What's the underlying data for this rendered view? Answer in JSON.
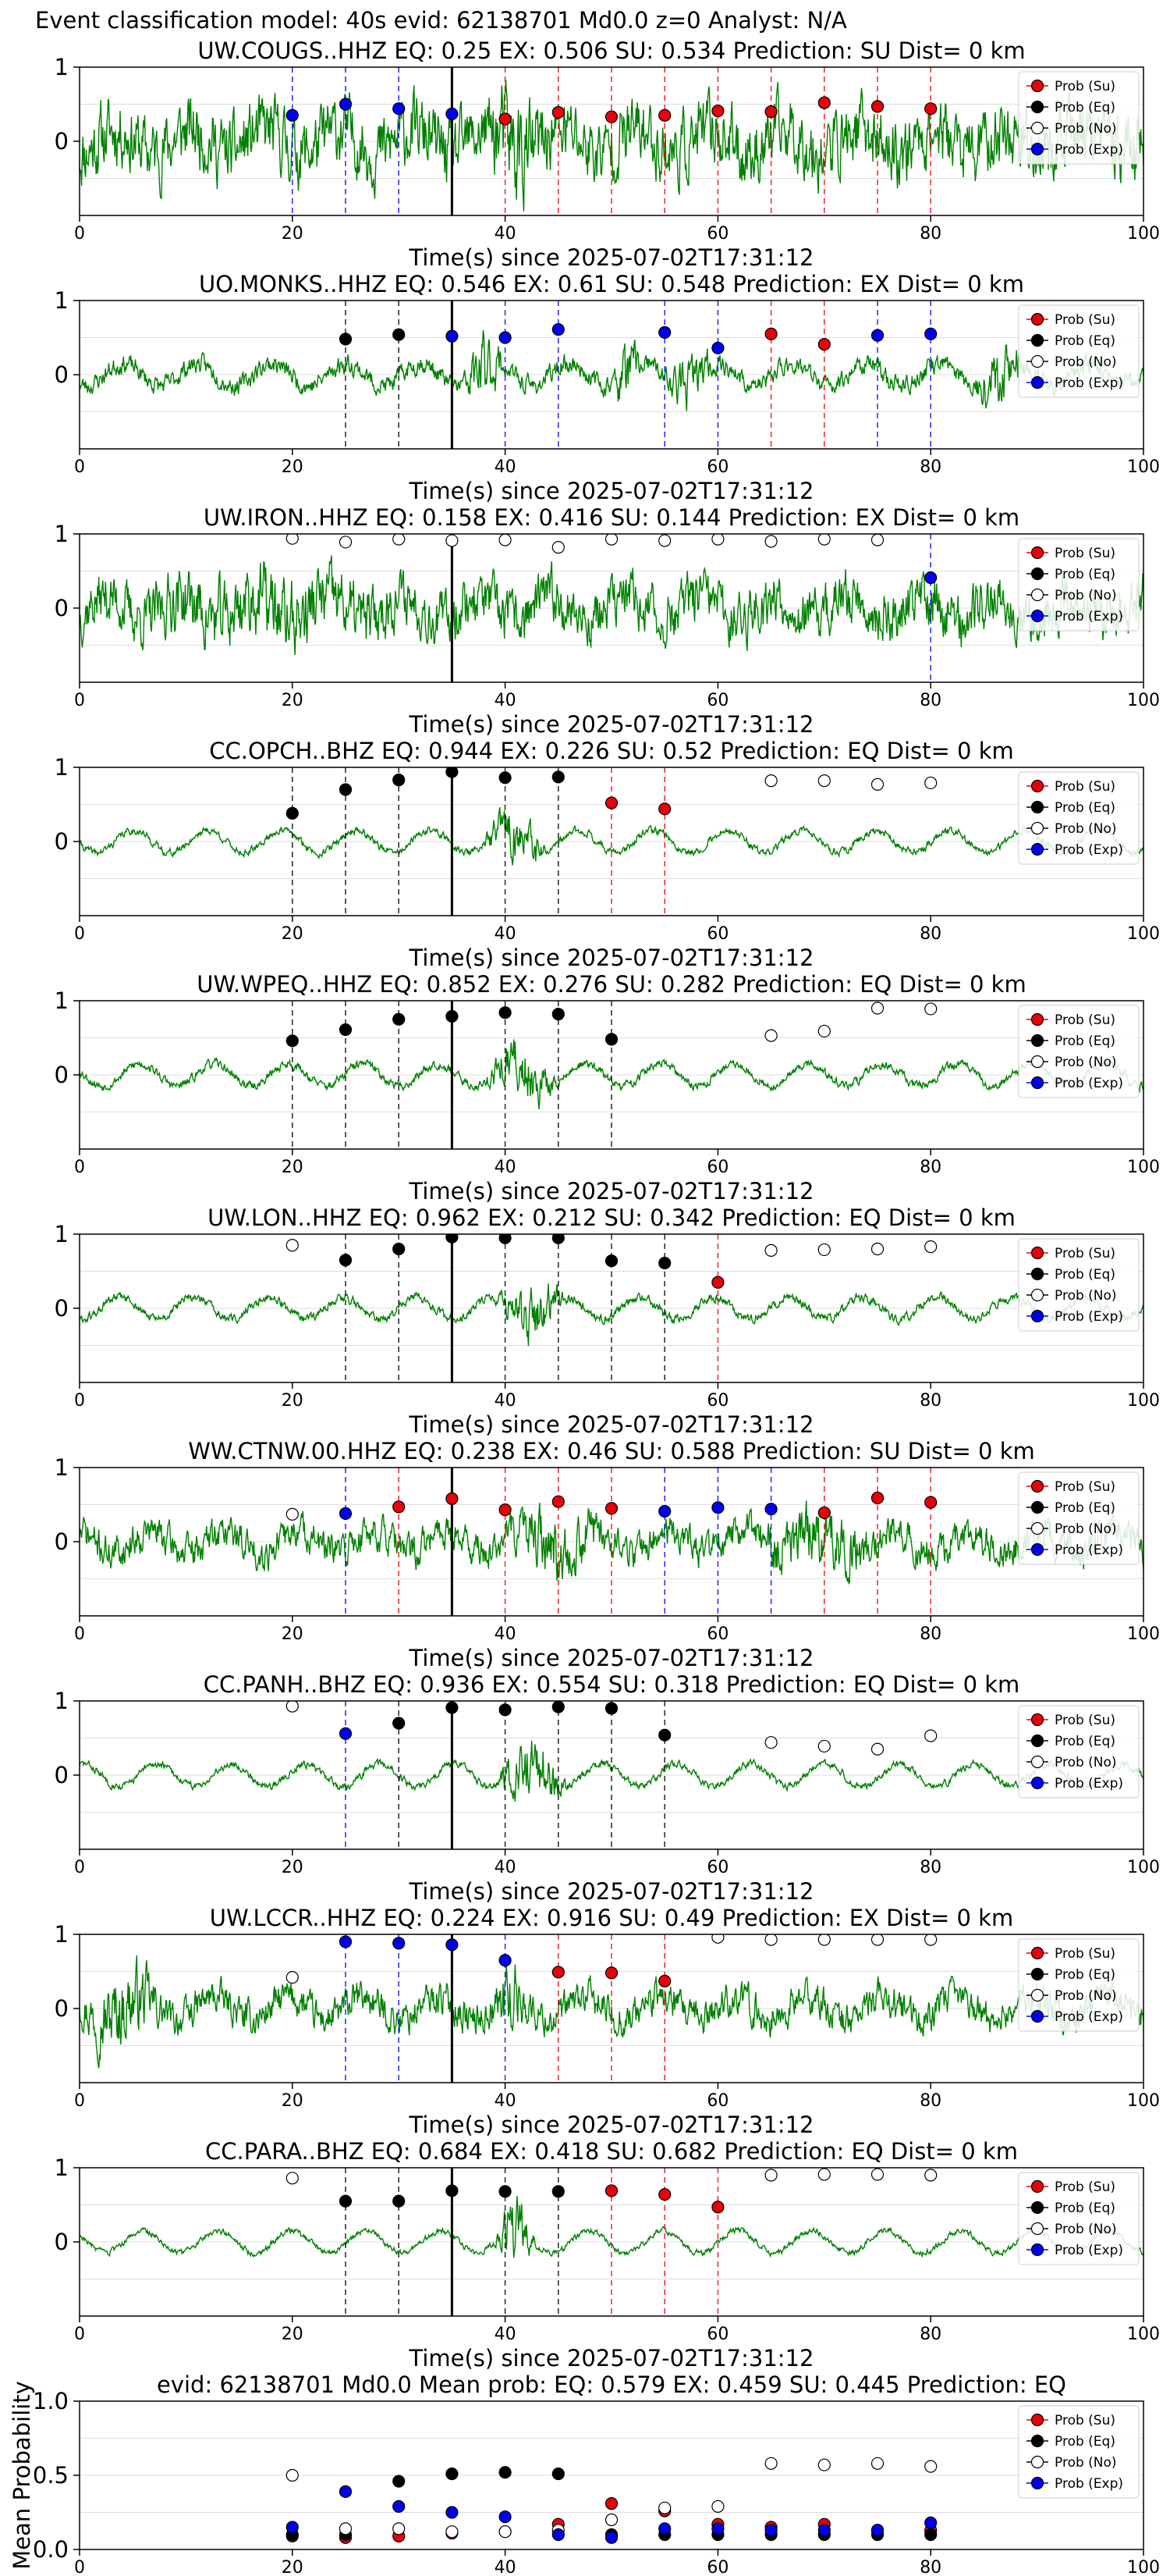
{
  "header": "Event classification model: 40s evid: 62138701 Md0.0 z=0 Analyst: N/A",
  "colors": {
    "trace": "#008000",
    "su": "#e8000b",
    "eq": "#000000",
    "no": "#ffffff",
    "exp": "#0000ee",
    "grid": "#dddddd",
    "pick": "#000000"
  },
  "legend": [
    "Prob (Su)",
    "Prob (Eq)",
    "Prob (No)",
    "Prob (Exp)"
  ],
  "chart_data": [
    {
      "type": "line",
      "title": "UW.COUGS..HHZ   EQ: 0.25   EX: 0.506   SU: 0.534   Prediction: SU    Dist= 0 km",
      "xlabel": "Time(s) since 2025-07-02T17:31:12",
      "xlim": [
        0,
        100
      ],
      "ylim": [
        -1,
        1
      ],
      "xticks": [
        "0",
        "20",
        "40",
        "60",
        "80",
        "100"
      ],
      "yticks": [
        "1",
        "0"
      ],
      "amp": 0.9,
      "seed": 11,
      "env": [
        [
          38,
          44,
          1.6
        ]
      ],
      "pick": 35,
      "markers": [
        [
          20,
          0.35,
          "exp"
        ],
        [
          25,
          0.5,
          "exp"
        ],
        [
          30,
          0.44,
          "exp"
        ],
        [
          35,
          0.37,
          "exp"
        ],
        [
          40,
          0.3,
          "su"
        ],
        [
          45,
          0.39,
          "su"
        ],
        [
          50,
          0.33,
          "su"
        ],
        [
          55,
          0.35,
          "su"
        ],
        [
          60,
          0.41,
          "su"
        ],
        [
          65,
          0.4,
          "su"
        ],
        [
          70,
          0.52,
          "su"
        ],
        [
          75,
          0.47,
          "su"
        ],
        [
          80,
          0.44,
          "su"
        ]
      ]
    },
    {
      "type": "line",
      "title": "UO.MONKS..HHZ   EQ: 0.546  EX: 0.61   SU: 0.548   Prediction: EX    Dist= 0 km",
      "xlabel": "Time(s) since 2025-07-02T17:31:12",
      "xlim": [
        0,
        100
      ],
      "ylim": [
        -1,
        1
      ],
      "xticks": [
        "0",
        "20",
        "40",
        "60",
        "80",
        "100"
      ],
      "yticks": [
        "1",
        "0"
      ],
      "amp": 0.25,
      "seed": 23,
      "env": [
        [
          36,
          40,
          3.5
        ],
        [
          50,
          53,
          3
        ],
        [
          55,
          60,
          2.5
        ],
        [
          84,
          89,
          3
        ]
      ],
      "pick": 35,
      "markers": [
        [
          25,
          0.48,
          "eq"
        ],
        [
          30,
          0.54,
          "eq"
        ],
        [
          35,
          0.52,
          "exp"
        ],
        [
          40,
          0.5,
          "exp"
        ],
        [
          45,
          0.61,
          "exp"
        ],
        [
          55,
          0.57,
          "exp"
        ],
        [
          60,
          0.36,
          "exp"
        ],
        [
          65,
          0.55,
          "su"
        ],
        [
          70,
          0.41,
          "su"
        ],
        [
          75,
          0.53,
          "exp"
        ],
        [
          80,
          0.55,
          "exp"
        ]
      ]
    },
    {
      "type": "line",
      "title": "UW.IRON..HHZ   EQ: 0.158  EX: 0.416  SU: 0.144   Prediction: EX    Dist= 0 km",
      "xlabel": "Time(s) since 2025-07-02T17:31:12",
      "xlim": [
        0,
        100
      ],
      "ylim": [
        -1,
        1
      ],
      "xticks": [
        "0",
        "20",
        "40",
        "60",
        "80",
        "100"
      ],
      "yticks": [
        "1",
        "0"
      ],
      "amp": 0.7,
      "seed": 37,
      "env": [
        [
          5,
          30,
          1.4
        ]
      ],
      "pick": 35,
      "markers": [
        [
          20,
          0.94,
          "no"
        ],
        [
          25,
          0.89,
          "no"
        ],
        [
          30,
          0.93,
          "no"
        ],
        [
          35,
          0.91,
          "no"
        ],
        [
          40,
          0.92,
          "no"
        ],
        [
          45,
          0.82,
          "no"
        ],
        [
          50,
          0.93,
          "no"
        ],
        [
          55,
          0.91,
          "no"
        ],
        [
          60,
          0.93,
          "no"
        ],
        [
          65,
          0.9,
          "no"
        ],
        [
          70,
          0.93,
          "no"
        ],
        [
          75,
          0.92,
          "no"
        ],
        [
          80,
          0.41,
          "exp"
        ]
      ]
    },
    {
      "type": "line",
      "title": "CC.OPCH..BHZ   EQ: 0.944  EX: 0.226  SU: 0.52   Prediction: EQ    Dist= 0 km",
      "xlabel": "Time(s) since 2025-07-02T17:31:12",
      "xlim": [
        0,
        100
      ],
      "ylim": [
        -1,
        1
      ],
      "xticks": [
        "0",
        "20",
        "40",
        "60",
        "80",
        "100"
      ],
      "yticks": [
        "1",
        "0"
      ],
      "amp": 0.1,
      "seed": 41,
      "env": [
        [
          38,
          44,
          7
        ]
      ],
      "pick": 35,
      "markers": [
        [
          20,
          0.38,
          "eq"
        ],
        [
          25,
          0.7,
          "eq"
        ],
        [
          30,
          0.83,
          "eq"
        ],
        [
          35,
          0.94,
          "eq"
        ],
        [
          40,
          0.86,
          "eq"
        ],
        [
          45,
          0.87,
          "eq"
        ],
        [
          50,
          0.52,
          "su"
        ],
        [
          55,
          0.44,
          "su"
        ],
        [
          65,
          0.82,
          "no"
        ],
        [
          70,
          0.82,
          "no"
        ],
        [
          75,
          0.77,
          "no"
        ],
        [
          80,
          0.79,
          "no"
        ]
      ]
    },
    {
      "type": "line",
      "title": "UW.WPEQ..HHZ   EQ: 0.852  EX: 0.276  SU: 0.282   Prediction: EQ    Dist= 0 km",
      "xlabel": "Time(s) since 2025-07-02T17:31:12",
      "xlim": [
        0,
        100
      ],
      "ylim": [
        -1,
        1
      ],
      "xticks": [
        "0",
        "20",
        "40",
        "60",
        "80",
        "100"
      ],
      "yticks": [
        "1",
        "0"
      ],
      "amp": 0.12,
      "seed": 53,
      "env": [
        [
          38,
          45,
          6
        ]
      ],
      "pick": 35,
      "markers": [
        [
          20,
          0.46,
          "eq"
        ],
        [
          25,
          0.61,
          "eq"
        ],
        [
          30,
          0.75,
          "eq"
        ],
        [
          35,
          0.79,
          "eq"
        ],
        [
          40,
          0.84,
          "eq"
        ],
        [
          45,
          0.82,
          "eq"
        ],
        [
          50,
          0.48,
          "eq"
        ],
        [
          65,
          0.53,
          "no"
        ],
        [
          70,
          0.59,
          "no"
        ],
        [
          75,
          0.9,
          "no"
        ],
        [
          80,
          0.89,
          "no"
        ]
      ]
    },
    {
      "type": "line",
      "title": "UW.LON..HHZ   EQ: 0.962  EX: 0.212  SU: 0.342   Prediction: EQ    Dist= 0 km",
      "xlabel": "Time(s) since 2025-07-02T17:31:12",
      "xlim": [
        0,
        100
      ],
      "ylim": [
        -1,
        1
      ],
      "xticks": [
        "0",
        "20",
        "40",
        "60",
        "80",
        "100"
      ],
      "yticks": [
        "1",
        "0"
      ],
      "amp": 0.12,
      "seed": 61,
      "env": [
        [
          39,
          46,
          6
        ]
      ],
      "pick": 35,
      "markers": [
        [
          20,
          0.85,
          "no"
        ],
        [
          25,
          0.65,
          "eq"
        ],
        [
          30,
          0.8,
          "eq"
        ],
        [
          35,
          0.96,
          "eq"
        ],
        [
          40,
          0.95,
          "eq"
        ],
        [
          45,
          0.95,
          "eq"
        ],
        [
          50,
          0.64,
          "eq"
        ],
        [
          55,
          0.61,
          "eq"
        ],
        [
          60,
          0.35,
          "su"
        ],
        [
          65,
          0.78,
          "no"
        ],
        [
          70,
          0.79,
          "no"
        ],
        [
          75,
          0.8,
          "no"
        ],
        [
          80,
          0.83,
          "no"
        ]
      ]
    },
    {
      "type": "line",
      "title": "WW.CTNW.00.HHZ   EQ: 0.238  EX: 0.46   SU: 0.588   Prediction: SU    Dist= 0 km",
      "xlabel": "Time(s) since 2025-07-02T17:31:12",
      "xlim": [
        0,
        100
      ],
      "ylim": [
        -1,
        1
      ],
      "xticks": [
        "0",
        "20",
        "40",
        "60",
        "80",
        "100"
      ],
      "yticks": [
        "1",
        "0"
      ],
      "amp": 0.45,
      "seed": 71,
      "env": [
        [
          40,
          50,
          1.8
        ],
        [
          63,
          75,
          1.8
        ]
      ],
      "pick": 35,
      "markers": [
        [
          20,
          0.37,
          "no"
        ],
        [
          25,
          0.38,
          "exp"
        ],
        [
          30,
          0.47,
          "su"
        ],
        [
          35,
          0.58,
          "su"
        ],
        [
          40,
          0.43,
          "su"
        ],
        [
          45,
          0.54,
          "su"
        ],
        [
          50,
          0.45,
          "su"
        ],
        [
          55,
          0.41,
          "exp"
        ],
        [
          60,
          0.46,
          "exp"
        ],
        [
          65,
          0.44,
          "exp"
        ],
        [
          70,
          0.39,
          "su"
        ],
        [
          75,
          0.59,
          "su"
        ],
        [
          80,
          0.53,
          "su"
        ]
      ]
    },
    {
      "type": "line",
      "title": "CC.PANH..BHZ   EQ: 0.936  EX: 0.554  SU: 0.318   Prediction: EQ    Dist= 0 km",
      "xlabel": "Time(s) since 2025-07-02T17:31:12",
      "xlim": [
        0,
        100
      ],
      "ylim": [
        -1,
        1
      ],
      "xticks": [
        "0",
        "20",
        "40",
        "60",
        "80",
        "100"
      ],
      "yticks": [
        "1",
        "0"
      ],
      "amp": 0.1,
      "seed": 83,
      "env": [
        [
          39,
          46,
          8
        ]
      ],
      "pick": 35,
      "markers": [
        [
          20,
          0.93,
          "no"
        ],
        [
          25,
          0.56,
          "exp"
        ],
        [
          30,
          0.7,
          "eq"
        ],
        [
          35,
          0.91,
          "eq"
        ],
        [
          40,
          0.88,
          "eq"
        ],
        [
          45,
          0.92,
          "eq"
        ],
        [
          50,
          0.9,
          "eq"
        ],
        [
          55,
          0.54,
          "eq"
        ],
        [
          65,
          0.44,
          "no"
        ],
        [
          70,
          0.39,
          "no"
        ],
        [
          75,
          0.35,
          "no"
        ],
        [
          80,
          0.53,
          "no"
        ]
      ]
    },
    {
      "type": "line",
      "title": "UW.LCCR..HHZ   EQ: 0.224  EX: 0.916  SU: 0.49   Prediction: EX    Dist= 0 km",
      "xlabel": "Time(s) since 2025-07-02T17:31:12",
      "xlim": [
        0,
        100
      ],
      "ylim": [
        -1,
        1
      ],
      "xticks": [
        "0",
        "20",
        "40",
        "60",
        "80",
        "100"
      ],
      "yticks": [
        "1",
        "0"
      ],
      "amp": 0.45,
      "seed": 97,
      "env": [
        [
          0,
          8,
          2.2
        ],
        [
          39,
          42,
          2.2
        ]
      ],
      "pick": 35,
      "markers": [
        [
          20,
          0.42,
          "no"
        ],
        [
          25,
          0.9,
          "exp"
        ],
        [
          30,
          0.88,
          "exp"
        ],
        [
          35,
          0.86,
          "exp"
        ],
        [
          40,
          0.65,
          "exp"
        ],
        [
          45,
          0.49,
          "su"
        ],
        [
          50,
          0.48,
          "su"
        ],
        [
          55,
          0.37,
          "su"
        ],
        [
          60,
          0.96,
          "no"
        ],
        [
          65,
          0.93,
          "no"
        ],
        [
          70,
          0.93,
          "no"
        ],
        [
          75,
          0.93,
          "no"
        ],
        [
          80,
          0.93,
          "no"
        ]
      ]
    },
    {
      "type": "line",
      "title": "CC.PARA..BHZ   EQ: 0.684  EX: 0.418  SU: 0.682   Prediction: EQ    Dist= 0 km",
      "xlabel": "Time(s) since 2025-07-02T17:31:12",
      "xlim": [
        0,
        100
      ],
      "ylim": [
        -1,
        1
      ],
      "xticks": [
        "0",
        "20",
        "40",
        "60",
        "80",
        "100"
      ],
      "yticks": [
        "1",
        "0"
      ],
      "amp": 0.08,
      "seed": 103,
      "env": [
        [
          39,
          43,
          10
        ]
      ],
      "pick": 35,
      "markers": [
        [
          20,
          0.86,
          "no"
        ],
        [
          25,
          0.55,
          "eq"
        ],
        [
          30,
          0.55,
          "eq"
        ],
        [
          35,
          0.69,
          "eq"
        ],
        [
          40,
          0.68,
          "eq"
        ],
        [
          45,
          0.68,
          "eq"
        ],
        [
          50,
          0.69,
          "su"
        ],
        [
          55,
          0.64,
          "su"
        ],
        [
          60,
          0.47,
          "su"
        ],
        [
          65,
          0.9,
          "no"
        ],
        [
          70,
          0.91,
          "no"
        ],
        [
          75,
          0.91,
          "no"
        ],
        [
          80,
          0.9,
          "no"
        ]
      ]
    },
    {
      "type": "scatter",
      "title": "evid: 62138701  Md0.0   Mean prob:   EQ: 0.579  EX: 0.459  SU: 0.445   Prediction: EQ",
      "ylabel": "Mean Probability",
      "xlim": [
        0,
        100
      ],
      "ylim": [
        0,
        1
      ],
      "xticks": [
        "0",
        "20",
        "40",
        "60",
        "80",
        "100"
      ],
      "yticks": [
        "1.0",
        "0.5",
        "0.0"
      ],
      "series": [
        {
          "name": "Prob (Su)",
          "key": "su",
          "x": [
            20,
            25,
            30,
            35,
            40,
            45,
            50,
            55,
            60,
            65,
            70,
            75,
            80
          ],
          "values": [
            0.09,
            0.08,
            0.09,
            0.11,
            0.12,
            0.17,
            0.31,
            0.26,
            0.17,
            0.15,
            0.17,
            0.13,
            0.13
          ]
        },
        {
          "name": "Prob (Eq)",
          "key": "eq",
          "x": [
            20,
            25,
            30,
            35,
            40,
            45,
            50,
            55,
            60,
            65,
            70,
            75,
            80
          ],
          "values": [
            0.1,
            0.1,
            0.46,
            0.51,
            0.52,
            0.51,
            0.1,
            0.1,
            0.1,
            0.1,
            0.1,
            0.1,
            0.1
          ]
        },
        {
          "name": "Prob (No)",
          "key": "no",
          "x": [
            20,
            25,
            30,
            35,
            40,
            45,
            50,
            55,
            60,
            65,
            70,
            75,
            80
          ],
          "values": [
            0.5,
            0.14,
            0.14,
            0.12,
            0.12,
            0.13,
            0.2,
            0.28,
            0.29,
            0.58,
            0.57,
            0.58,
            0.56
          ]
        },
        {
          "name": "Prob (Exp)",
          "key": "exp",
          "x": [
            20,
            25,
            30,
            35,
            40,
            45,
            50,
            55,
            60,
            65,
            70,
            75,
            80
          ],
          "values": [
            0.15,
            0.39,
            0.29,
            0.25,
            0.22,
            0.1,
            0.08,
            0.14,
            0.14,
            0.13,
            0.13,
            0.13,
            0.18
          ]
        }
      ]
    }
  ]
}
